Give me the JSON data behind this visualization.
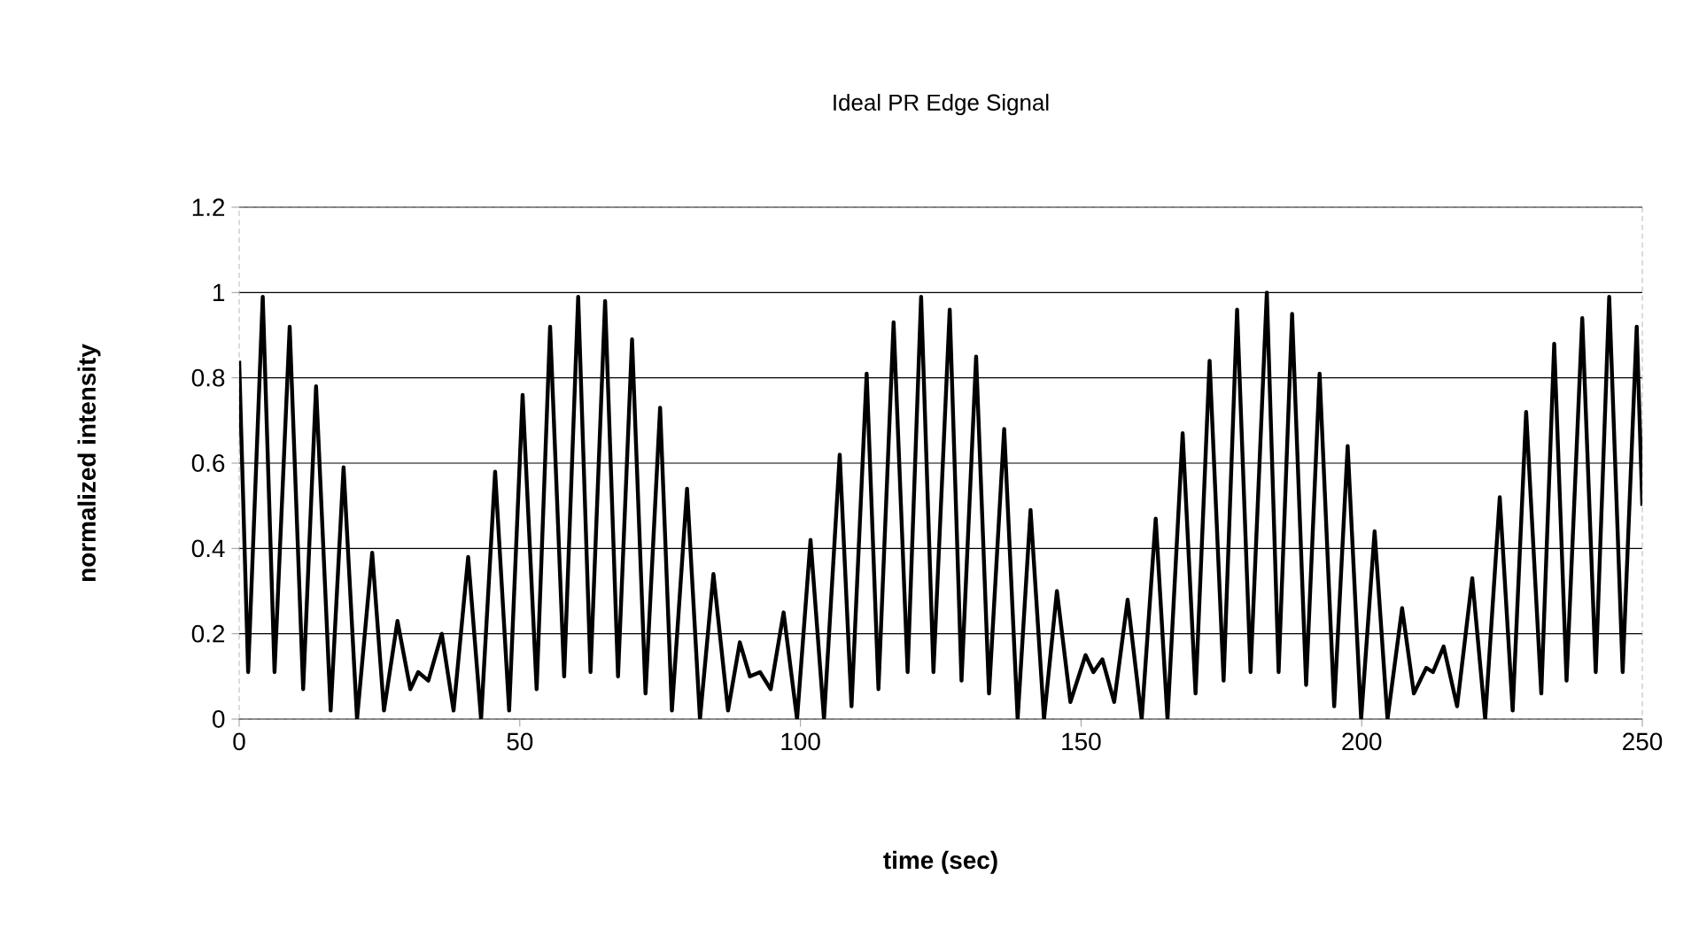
{
  "chart_data": {
    "type": "line",
    "title": "Ideal PR Edge Signal",
    "xlabel": "time (sec)",
    "ylabel": "normalized intensity",
    "x": [
      0,
      1.6,
      4.2,
      6.3,
      9.0,
      11.4,
      13.7,
      16.3,
      18.6,
      21.0,
      23.7,
      25.8,
      28.2,
      30.5,
      31.9,
      33.7,
      36.1,
      38.2,
      40.8,
      43.1,
      45.6,
      48.1,
      50.5,
      53.0,
      55.4,
      57.9,
      60.4,
      62.6,
      65.2,
      67.5,
      70.0,
      72.4,
      75.0,
      77.1,
      79.8,
      82.1,
      84.5,
      87.1,
      89.2,
      91.0,
      92.8,
      94.7,
      97.0,
      99.4,
      101.8,
      104.2,
      107.0,
      109.1,
      111.8,
      113.9,
      116.6,
      119.1,
      121.5,
      123.7,
      126.6,
      128.7,
      131.3,
      133.6,
      136.3,
      138.7,
      141.0,
      143.4,
      145.7,
      148.1,
      150.8,
      152.2,
      153.8,
      155.9,
      158.3,
      160.8,
      163.3,
      165.4,
      168.1,
      170.4,
      172.9,
      175.4,
      177.8,
      180.2,
      183.1,
      185.2,
      187.6,
      190.1,
      192.5,
      195.1,
      197.5,
      199.9,
      202.3,
      204.6,
      207.2,
      209.3,
      211.5,
      212.7,
      214.6,
      217.0,
      219.7,
      222.0,
      224.6,
      226.9,
      229.3,
      232.0,
      234.3,
      236.5,
      239.3,
      241.7,
      244.1,
      246.5,
      249.0,
      250
    ],
    "values": [
      0.84,
      0.11,
      0.99,
      0.11,
      0.92,
      0.07,
      0.78,
      0.02,
      0.59,
      0.0,
      0.39,
      0.02,
      0.23,
      0.07,
      0.11,
      0.09,
      0.2,
      0.02,
      0.38,
      0.0,
      0.58,
      0.02,
      0.76,
      0.07,
      0.92,
      0.1,
      0.99,
      0.11,
      0.98,
      0.1,
      0.89,
      0.06,
      0.73,
      0.02,
      0.54,
      0.0,
      0.34,
      0.02,
      0.18,
      0.1,
      0.11,
      0.07,
      0.25,
      0.0,
      0.42,
      0.0,
      0.62,
      0.03,
      0.81,
      0.07,
      0.93,
      0.11,
      0.99,
      0.11,
      0.96,
      0.09,
      0.85,
      0.06,
      0.68,
      0.0,
      0.49,
      0.0,
      0.3,
      0.04,
      0.15,
      0.11,
      0.14,
      0.04,
      0.28,
      0.0,
      0.47,
      0.0,
      0.67,
      0.06,
      0.84,
      0.09,
      0.96,
      0.11,
      1.0,
      0.11,
      0.95,
      0.08,
      0.81,
      0.03,
      0.64,
      0.0,
      0.44,
      0.0,
      0.26,
      0.06,
      0.12,
      0.11,
      0.17,
      0.03,
      0.33,
      0.0,
      0.52,
      0.02,
      0.72,
      0.06,
      0.88,
      0.09,
      0.94,
      0.11,
      0.99,
      0.11,
      0.92,
      0.5
    ],
    "color": "#000000",
    "xlim": [
      0,
      250
    ],
    "ylim": [
      0,
      1.2
    ],
    "xticks": [
      0,
      50,
      100,
      150,
      200,
      250
    ],
    "yticks": [
      0,
      0.2,
      0.4,
      0.6,
      0.8,
      1,
      1.2
    ],
    "grid": "y",
    "marker": "none",
    "line_style": "solid"
  }
}
